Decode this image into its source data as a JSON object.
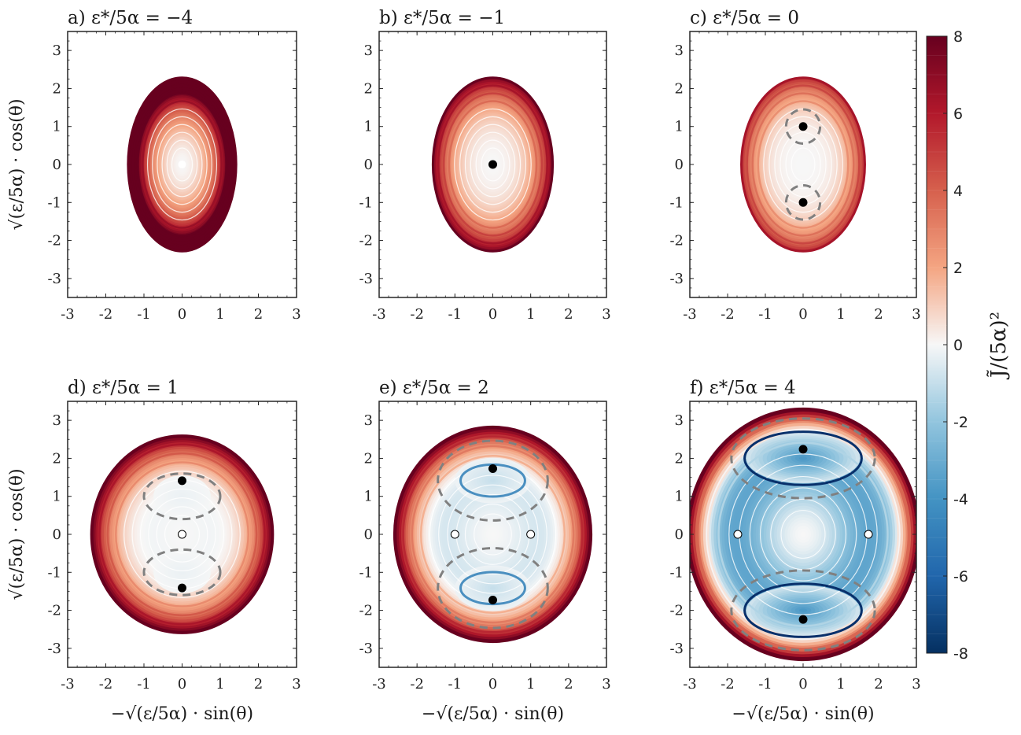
{
  "chart_data": [
    {
      "type": "contour",
      "panel_label": "a)",
      "title": "ε*/5α = −4",
      "eps_ratio": -4,
      "xlim": [
        -3,
        3
      ],
      "ylim": [
        -3.5,
        3.5
      ],
      "xticks": [
        "-3",
        "-2",
        "-1",
        "0",
        "1",
        "2",
        "3"
      ],
      "yticks": [
        "-3",
        "-2",
        "-1",
        "0",
        "1",
        "2",
        "3"
      ],
      "ylabel": "√(ε/5α) · cos(θ)",
      "xlabel": "",
      "fixed_points": [
        {
          "x": 0,
          "y": 0,
          "kind": "center"
        }
      ],
      "separatrix": false
    },
    {
      "type": "contour",
      "panel_label": "b)",
      "title": "ε*/5α = −1",
      "eps_ratio": -1,
      "xlim": [
        -3,
        3
      ],
      "ylim": [
        -3.5,
        3.5
      ],
      "xticks": [
        "-3",
        "-2",
        "-1",
        "0",
        "1",
        "2",
        "3"
      ],
      "yticks": [
        "-3",
        "-2",
        "-1",
        "0",
        "1",
        "2",
        "3"
      ],
      "ylabel": "",
      "xlabel": "",
      "fixed_points": [
        {
          "x": 0,
          "y": 0,
          "kind": "stable"
        }
      ],
      "separatrix": false
    },
    {
      "type": "contour",
      "panel_label": "c)",
      "title": "ε*/5α = 0",
      "eps_ratio": 0,
      "xlim": [
        -3,
        3
      ],
      "ylim": [
        -3.5,
        3.5
      ],
      "xticks": [
        "-3",
        "-2",
        "-1",
        "0",
        "1",
        "2",
        "3"
      ],
      "yticks": [
        "-3",
        "-2",
        "-1",
        "0",
        "1",
        "2",
        "3"
      ],
      "ylabel": "",
      "xlabel": "",
      "fixed_points": [
        {
          "x": 0,
          "y": 1,
          "kind": "stable"
        },
        {
          "x": 0,
          "y": -1,
          "kind": "stable"
        }
      ],
      "separatrix": true
    },
    {
      "type": "contour",
      "panel_label": "d)",
      "title": "ε*/5α = 1",
      "eps_ratio": 1,
      "xlim": [
        -3,
        3
      ],
      "ylim": [
        -3.5,
        3.5
      ],
      "xticks": [
        "-3",
        "-2",
        "-1",
        "0",
        "1",
        "2",
        "3"
      ],
      "yticks": [
        "-3",
        "-2",
        "-1",
        "0",
        "1",
        "2",
        "3"
      ],
      "ylabel": "√(ε/5α) · cos(θ)",
      "xlabel": "−√(ε/5α) · sin(θ)",
      "fixed_points": [
        {
          "x": 0,
          "y": 1.41,
          "kind": "stable"
        },
        {
          "x": 0,
          "y": -1.41,
          "kind": "stable"
        },
        {
          "x": 0,
          "y": 0,
          "kind": "saddle"
        }
      ],
      "separatrix": true
    },
    {
      "type": "contour",
      "panel_label": "e)",
      "title": "ε*/5α = 2",
      "eps_ratio": 2,
      "xlim": [
        -3,
        3
      ],
      "ylim": [
        -3.5,
        3.5
      ],
      "xticks": [
        "-3",
        "-2",
        "-1",
        "0",
        "1",
        "2",
        "3"
      ],
      "yticks": [
        "-3",
        "-2",
        "-1",
        "0",
        "1",
        "2",
        "3"
      ],
      "ylabel": "",
      "xlabel": "−√(ε/5α) · sin(θ)",
      "fixed_points": [
        {
          "x": 0,
          "y": 1.73,
          "kind": "stable"
        },
        {
          "x": 0,
          "y": -1.73,
          "kind": "stable"
        },
        {
          "x": -1,
          "y": 0,
          "kind": "saddle"
        },
        {
          "x": 1,
          "y": 0,
          "kind": "saddle"
        }
      ],
      "separatrix": true
    },
    {
      "type": "contour",
      "panel_label": "f)",
      "title": "ε*/5α = 4",
      "eps_ratio": 4,
      "xlim": [
        -3,
        3
      ],
      "ylim": [
        -3.5,
        3.5
      ],
      "xticks": [
        "-3",
        "-2",
        "-1",
        "0",
        "1",
        "2",
        "3"
      ],
      "yticks": [
        "-3",
        "-2",
        "-1",
        "0",
        "1",
        "2",
        "3"
      ],
      "ylabel": "",
      "xlabel": "−√(ε/5α) · sin(θ)",
      "fixed_points": [
        {
          "x": 0,
          "y": 2.24,
          "kind": "stable"
        },
        {
          "x": 0,
          "y": -2.24,
          "kind": "stable"
        },
        {
          "x": -1.73,
          "y": 0,
          "kind": "saddle"
        },
        {
          "x": 1.73,
          "y": 0,
          "kind": "saddle"
        }
      ],
      "separatrix": true
    }
  ],
  "colorbar": {
    "label": "J̃/(5α)²",
    "range": [
      -8,
      8
    ],
    "ticks": [
      "8",
      "6",
      "4",
      "2",
      "0",
      "-2",
      "-4",
      "-6",
      "-8"
    ],
    "colormap": "RdBu",
    "colors": {
      "max": "#67001f",
      "mid": "#f7f7f7",
      "min": "#053061"
    }
  }
}
